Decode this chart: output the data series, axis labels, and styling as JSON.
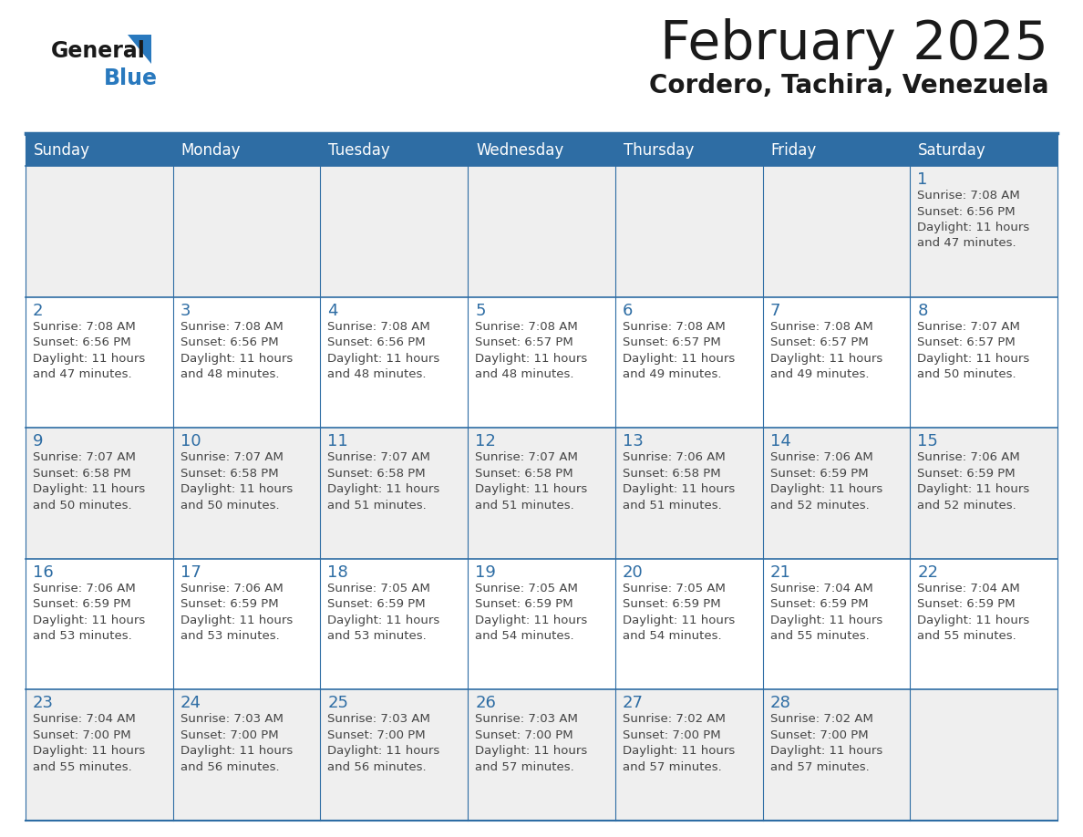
{
  "title": "February 2025",
  "subtitle": "Cordero, Tachira, Venezuela",
  "header_bg": "#2E6DA4",
  "header_text_color": "#FFFFFF",
  "cell_bg_light": "#EFEFEF",
  "cell_bg_white": "#FFFFFF",
  "cell_text_color": "#444444",
  "day_number_color": "#2E6DA4",
  "border_color": "#2E6DA4",
  "days_of_week": [
    "Sunday",
    "Monday",
    "Tuesday",
    "Wednesday",
    "Thursday",
    "Friday",
    "Saturday"
  ],
  "calendar_data": [
    [
      {
        "day": null,
        "info": null
      },
      {
        "day": null,
        "info": null
      },
      {
        "day": null,
        "info": null
      },
      {
        "day": null,
        "info": null
      },
      {
        "day": null,
        "info": null
      },
      {
        "day": null,
        "info": null
      },
      {
        "day": 1,
        "info": "Sunrise: 7:08 AM\nSunset: 6:56 PM\nDaylight: 11 hours\nand 47 minutes."
      }
    ],
    [
      {
        "day": 2,
        "info": "Sunrise: 7:08 AM\nSunset: 6:56 PM\nDaylight: 11 hours\nand 47 minutes."
      },
      {
        "day": 3,
        "info": "Sunrise: 7:08 AM\nSunset: 6:56 PM\nDaylight: 11 hours\nand 48 minutes."
      },
      {
        "day": 4,
        "info": "Sunrise: 7:08 AM\nSunset: 6:56 PM\nDaylight: 11 hours\nand 48 minutes."
      },
      {
        "day": 5,
        "info": "Sunrise: 7:08 AM\nSunset: 6:57 PM\nDaylight: 11 hours\nand 48 minutes."
      },
      {
        "day": 6,
        "info": "Sunrise: 7:08 AM\nSunset: 6:57 PM\nDaylight: 11 hours\nand 49 minutes."
      },
      {
        "day": 7,
        "info": "Sunrise: 7:08 AM\nSunset: 6:57 PM\nDaylight: 11 hours\nand 49 minutes."
      },
      {
        "day": 8,
        "info": "Sunrise: 7:07 AM\nSunset: 6:57 PM\nDaylight: 11 hours\nand 50 minutes."
      }
    ],
    [
      {
        "day": 9,
        "info": "Sunrise: 7:07 AM\nSunset: 6:58 PM\nDaylight: 11 hours\nand 50 minutes."
      },
      {
        "day": 10,
        "info": "Sunrise: 7:07 AM\nSunset: 6:58 PM\nDaylight: 11 hours\nand 50 minutes."
      },
      {
        "day": 11,
        "info": "Sunrise: 7:07 AM\nSunset: 6:58 PM\nDaylight: 11 hours\nand 51 minutes."
      },
      {
        "day": 12,
        "info": "Sunrise: 7:07 AM\nSunset: 6:58 PM\nDaylight: 11 hours\nand 51 minutes."
      },
      {
        "day": 13,
        "info": "Sunrise: 7:06 AM\nSunset: 6:58 PM\nDaylight: 11 hours\nand 51 minutes."
      },
      {
        "day": 14,
        "info": "Sunrise: 7:06 AM\nSunset: 6:59 PM\nDaylight: 11 hours\nand 52 minutes."
      },
      {
        "day": 15,
        "info": "Sunrise: 7:06 AM\nSunset: 6:59 PM\nDaylight: 11 hours\nand 52 minutes."
      }
    ],
    [
      {
        "day": 16,
        "info": "Sunrise: 7:06 AM\nSunset: 6:59 PM\nDaylight: 11 hours\nand 53 minutes."
      },
      {
        "day": 17,
        "info": "Sunrise: 7:06 AM\nSunset: 6:59 PM\nDaylight: 11 hours\nand 53 minutes."
      },
      {
        "day": 18,
        "info": "Sunrise: 7:05 AM\nSunset: 6:59 PM\nDaylight: 11 hours\nand 53 minutes."
      },
      {
        "day": 19,
        "info": "Sunrise: 7:05 AM\nSunset: 6:59 PM\nDaylight: 11 hours\nand 54 minutes."
      },
      {
        "day": 20,
        "info": "Sunrise: 7:05 AM\nSunset: 6:59 PM\nDaylight: 11 hours\nand 54 minutes."
      },
      {
        "day": 21,
        "info": "Sunrise: 7:04 AM\nSunset: 6:59 PM\nDaylight: 11 hours\nand 55 minutes."
      },
      {
        "day": 22,
        "info": "Sunrise: 7:04 AM\nSunset: 6:59 PM\nDaylight: 11 hours\nand 55 minutes."
      }
    ],
    [
      {
        "day": 23,
        "info": "Sunrise: 7:04 AM\nSunset: 7:00 PM\nDaylight: 11 hours\nand 55 minutes."
      },
      {
        "day": 24,
        "info": "Sunrise: 7:03 AM\nSunset: 7:00 PM\nDaylight: 11 hours\nand 56 minutes."
      },
      {
        "day": 25,
        "info": "Sunrise: 7:03 AM\nSunset: 7:00 PM\nDaylight: 11 hours\nand 56 minutes."
      },
      {
        "day": 26,
        "info": "Sunrise: 7:03 AM\nSunset: 7:00 PM\nDaylight: 11 hours\nand 57 minutes."
      },
      {
        "day": 27,
        "info": "Sunrise: 7:02 AM\nSunset: 7:00 PM\nDaylight: 11 hours\nand 57 minutes."
      },
      {
        "day": 28,
        "info": "Sunrise: 7:02 AM\nSunset: 7:00 PM\nDaylight: 11 hours\nand 57 minutes."
      },
      {
        "day": null,
        "info": null
      }
    ]
  ],
  "logo_general_color": "#1a1a1a",
  "logo_blue_color": "#2979BE",
  "logo_triangle_color": "#2979BE",
  "title_color": "#1a1a1a",
  "subtitle_color": "#1a1a1a"
}
